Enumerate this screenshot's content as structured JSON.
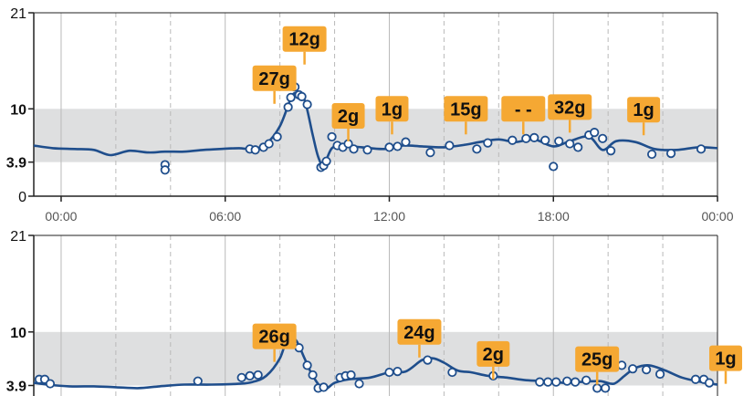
{
  "colors": {
    "target_band": "#dedfe0",
    "line": "#1f4e8c",
    "marker_fill": "#ffffff",
    "grid": "#b9b9b9",
    "carb_box": "#f5a833",
    "axis": "#222222"
  },
  "chart_data": [
    {
      "type": "line",
      "title": "",
      "xlabel": "",
      "ylabel": "",
      "grid": true,
      "x_unit": "hour of day",
      "xlim": [
        -1,
        24
      ],
      "ylim": [
        0,
        21
      ],
      "y_ticks": [
        {
          "value": 0,
          "label": "0",
          "bold": false
        },
        {
          "value": 3.9,
          "label": "3.9",
          "bold": true
        },
        {
          "value": 10,
          "label": "10",
          "bold": true
        },
        {
          "value": 21,
          "label": "21",
          "bold": false
        }
      ],
      "x_ticks": [
        {
          "value": 0,
          "label": "00:00"
        },
        {
          "value": 6,
          "label": "06:00"
        },
        {
          "value": 12,
          "label": "12:00"
        },
        {
          "value": 18,
          "label": "18:00"
        },
        {
          "value": 24,
          "label": "00:00"
        }
      ],
      "target_range": [
        3.9,
        10
      ],
      "series": [
        {
          "values": [
            [
              -1,
              5.8
            ],
            [
              -0.3,
              5.5
            ],
            [
              0.5,
              5.4
            ],
            [
              1.2,
              5.3
            ],
            [
              1.8,
              4.7
            ],
            [
              2.5,
              5.2
            ],
            [
              3.2,
              5.0
            ],
            [
              3.8,
              5.1
            ],
            [
              4.5,
              5.1
            ],
            [
              5.2,
              5.3
            ],
            [
              5.8,
              5.4
            ],
            [
              6.5,
              5.5
            ],
            [
              7.0,
              5.4
            ],
            [
              7.5,
              6.0
            ],
            [
              8.0,
              8.0
            ],
            [
              8.4,
              11.2
            ],
            [
              8.6,
              11.8
            ],
            [
              8.9,
              11.0
            ],
            [
              9.2,
              7.0
            ],
            [
              9.4,
              4.5
            ],
            [
              9.6,
              3.6
            ],
            [
              9.9,
              5.5
            ],
            [
              10.3,
              5.8
            ],
            [
              11.0,
              5.6
            ],
            [
              11.8,
              5.4
            ],
            [
              12.5,
              5.8
            ],
            [
              13.2,
              5.7
            ],
            [
              14.0,
              5.6
            ],
            [
              14.8,
              5.9
            ],
            [
              15.3,
              6.2
            ],
            [
              16.0,
              6.5
            ],
            [
              16.6,
              6.2
            ],
            [
              17.3,
              6.5
            ],
            [
              18.0,
              5.7
            ],
            [
              18.6,
              6.3
            ],
            [
              19.3,
              6.8
            ],
            [
              19.8,
              5.3
            ],
            [
              20.3,
              6.3
            ],
            [
              21.0,
              6.2
            ],
            [
              21.7,
              5.4
            ],
            [
              22.5,
              5.3
            ],
            [
              23.3,
              5.6
            ],
            [
              24,
              5.5
            ]
          ],
          "markers": [
            [
              3.8,
              3.6
            ],
            [
              3.8,
              3.0
            ],
            [
              6.9,
              5.4
            ],
            [
              7.1,
              5.3
            ],
            [
              7.4,
              5.6
            ],
            [
              7.6,
              6.0
            ],
            [
              7.9,
              6.8
            ],
            [
              8.3,
              10.2
            ],
            [
              8.4,
              11.3
            ],
            [
              8.55,
              12.5
            ],
            [
              8.7,
              11.6
            ],
            [
              8.8,
              11.4
            ],
            [
              9.0,
              10.5
            ],
            [
              9.5,
              3.3
            ],
            [
              9.6,
              3.5
            ],
            [
              9.7,
              4.0
            ],
            [
              9.9,
              6.8
            ],
            [
              10.1,
              5.8
            ],
            [
              10.3,
              5.6
            ],
            [
              10.5,
              6.0
            ],
            [
              10.7,
              5.4
            ],
            [
              11.2,
              5.3
            ],
            [
              12.0,
              5.6
            ],
            [
              12.3,
              5.7
            ],
            [
              12.6,
              6.2
            ],
            [
              13.5,
              5.0
            ],
            [
              14.2,
              5.8
            ],
            [
              15.2,
              5.4
            ],
            [
              15.6,
              6.1
            ],
            [
              16.5,
              6.4
            ],
            [
              17.0,
              6.6
            ],
            [
              17.3,
              6.7
            ],
            [
              17.7,
              6.4
            ],
            [
              18.0,
              3.4
            ],
            [
              18.2,
              6.3
            ],
            [
              18.6,
              6.0
            ],
            [
              18.9,
              5.6
            ],
            [
              19.3,
              7.0
            ],
            [
              19.5,
              7.3
            ],
            [
              19.8,
              6.6
            ],
            [
              20.1,
              5.2
            ],
            [
              21.6,
              4.8
            ],
            [
              22.3,
              4.9
            ],
            [
              23.4,
              5.4
            ]
          ]
        }
      ],
      "annotations": [
        {
          "label": "27g",
          "x": 7.8,
          "level": 13.5
        },
        {
          "label": "12g",
          "x": 8.9,
          "level": 18.0
        },
        {
          "label": "2g",
          "x": 10.5,
          "level": 9.2
        },
        {
          "label": "1g",
          "x": 12.1,
          "level": 10.0
        },
        {
          "label": "15g",
          "x": 14.8,
          "level": 10.0
        },
        {
          "label": "- -",
          "x": 16.9,
          "level": 10.0
        },
        {
          "label": "32g",
          "x": 18.6,
          "level": 10.2
        },
        {
          "label": "1g",
          "x": 21.3,
          "level": 9.9
        }
      ]
    },
    {
      "type": "line",
      "title": "",
      "xlabel": "",
      "ylabel": "",
      "grid": true,
      "x_unit": "hour of day",
      "xlim": [
        -1,
        24
      ],
      "ylim": [
        0,
        21
      ],
      "y_ticks": [
        {
          "value": 3.9,
          "label": "3.9",
          "bold": true
        },
        {
          "value": 10,
          "label": "10",
          "bold": true
        },
        {
          "value": 21,
          "label": "21",
          "bold": false
        }
      ],
      "x_ticks": [],
      "target_range": [
        3.9,
        10
      ],
      "series": [
        {
          "values": [
            [
              -1,
              4.2
            ],
            [
              -0.5,
              4.0
            ],
            [
              0.3,
              3.8
            ],
            [
              1.2,
              3.8
            ],
            [
              2.0,
              3.7
            ],
            [
              2.8,
              3.6
            ],
            [
              3.6,
              3.8
            ],
            [
              4.5,
              4.0
            ],
            [
              5.5,
              4.0
            ],
            [
              6.5,
              4.1
            ],
            [
              7.0,
              4.3
            ],
            [
              7.5,
              5.0
            ],
            [
              8.0,
              7.0
            ],
            [
              8.3,
              9.5
            ],
            [
              8.6,
              9.0
            ],
            [
              8.9,
              7.0
            ],
            [
              9.2,
              5.0
            ],
            [
              9.6,
              3.5
            ],
            [
              10.0,
              4.2
            ],
            [
              10.5,
              4.6
            ],
            [
              11.3,
              4.8
            ],
            [
              12.0,
              5.4
            ],
            [
              12.6,
              5.5
            ],
            [
              13.2,
              6.8
            ],
            [
              13.6,
              7.0
            ],
            [
              14.0,
              6.5
            ],
            [
              14.5,
              5.6
            ],
            [
              15.0,
              5.4
            ],
            [
              15.6,
              5.0
            ],
            [
              16.3,
              4.8
            ],
            [
              17.0,
              4.5
            ],
            [
              17.8,
              4.4
            ],
            [
              18.4,
              4.2
            ],
            [
              19.0,
              4.3
            ],
            [
              19.7,
              4.4
            ],
            [
              20.2,
              4.1
            ],
            [
              20.6,
              5.0
            ],
            [
              21.0,
              5.9
            ],
            [
              21.5,
              6.2
            ],
            [
              22.1,
              5.6
            ],
            [
              22.7,
              4.8
            ],
            [
              23.4,
              4.3
            ],
            [
              24,
              4.0
            ]
          ],
          "markers": [
            [
              -0.8,
              4.6
            ],
            [
              -0.6,
              4.6
            ],
            [
              -0.4,
              4.1
            ],
            [
              5.0,
              4.4
            ],
            [
              6.6,
              4.8
            ],
            [
              6.9,
              5.0
            ],
            [
              7.2,
              5.1
            ],
            [
              8.2,
              10.1
            ],
            [
              8.3,
              9.7
            ],
            [
              8.7,
              8.2
            ],
            [
              9.0,
              6.2
            ],
            [
              9.2,
              5.1
            ],
            [
              9.4,
              3.6
            ],
            [
              9.6,
              3.7
            ],
            [
              10.2,
              4.8
            ],
            [
              10.4,
              5.0
            ],
            [
              10.6,
              5.1
            ],
            [
              10.9,
              4.1
            ],
            [
              12.0,
              5.4
            ],
            [
              12.3,
              5.5
            ],
            [
              13.4,
              6.8
            ],
            [
              14.3,
              5.4
            ],
            [
              15.8,
              5.0
            ],
            [
              17.5,
              4.3
            ],
            [
              17.8,
              4.3
            ],
            [
              18.1,
              4.3
            ],
            [
              18.5,
              4.4
            ],
            [
              18.8,
              4.3
            ],
            [
              19.2,
              4.5
            ],
            [
              19.6,
              3.6
            ],
            [
              19.9,
              3.6
            ],
            [
              20.5,
              6.2
            ],
            [
              20.9,
              5.8
            ],
            [
              21.4,
              5.7
            ],
            [
              21.9,
              5.2
            ],
            [
              23.2,
              4.6
            ],
            [
              23.5,
              4.6
            ],
            [
              23.7,
              4.2
            ]
          ]
        }
      ],
      "annotations": [
        {
          "label": "26g",
          "x": 7.8,
          "level": 9.5
        },
        {
          "label": "24g",
          "x": 13.1,
          "level": 10.0
        },
        {
          "label": "2g",
          "x": 15.8,
          "level": 7.5
        },
        {
          "label": "25g",
          "x": 19.6,
          "level": 6.9
        },
        {
          "label": "1g",
          "x": 24.3,
          "level": 7.0
        }
      ]
    }
  ]
}
